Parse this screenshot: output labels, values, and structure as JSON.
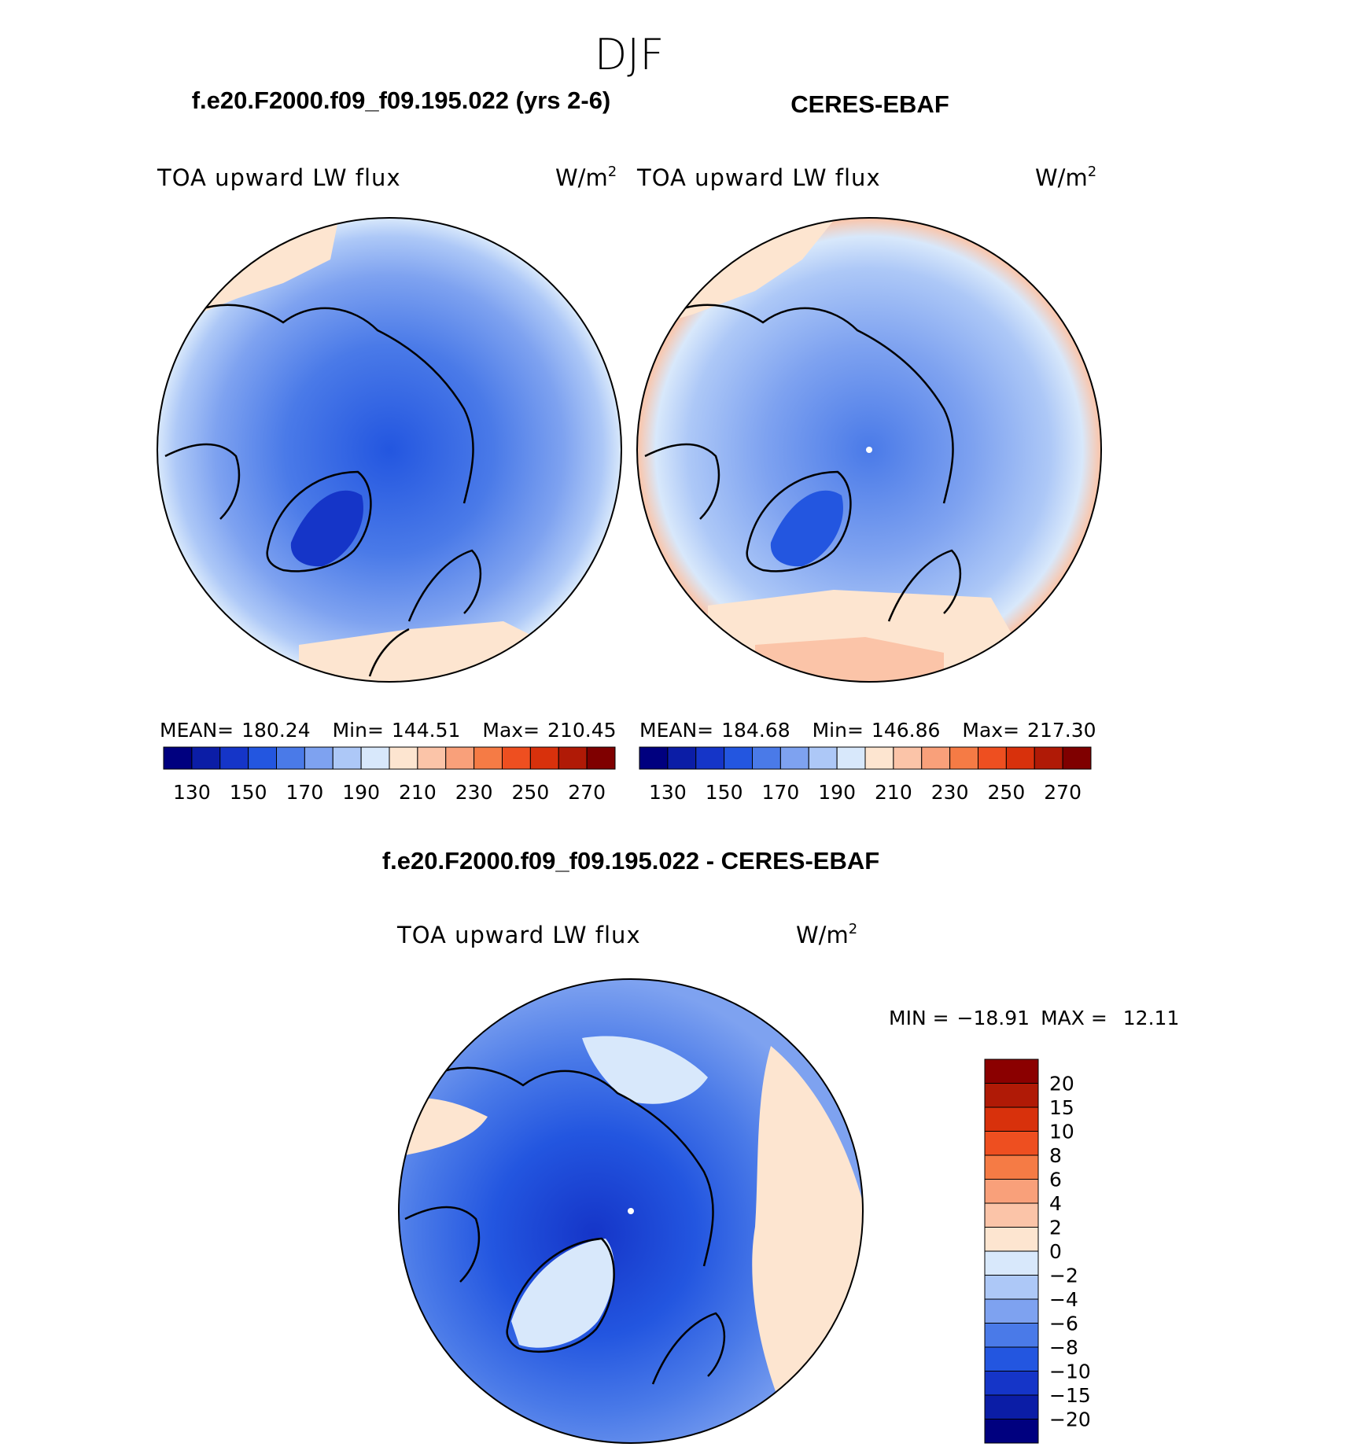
{
  "figure": {
    "season": "DJF",
    "panel_title_model": "f.e20.F2000.f09_f09.195.022 (yrs 2-6)",
    "panel_title_obs": "CERES-EBAF",
    "panel_title_diff": "f.e20.F2000.f09_f09.195.022 - CERES-EBAF",
    "variable": "TOA upward LW flux",
    "units": "W/m",
    "units_exp": "2"
  },
  "chart_data": [
    {
      "type": "heatmap",
      "name": "model",
      "title": "f.e20.F2000.f09_f09.195.022 (yrs 2-6)",
      "variable": "TOA upward LW flux",
      "units": "W/m2",
      "stats": {
        "mean_label": "MEAN=",
        "mean": "180.24",
        "min_label": "Min=",
        "min": "144.51",
        "max_label": "Max=",
        "max": "210.45"
      },
      "levels": [
        "130",
        "150",
        "170",
        "190",
        "210",
        "230",
        "250",
        "270"
      ]
    },
    {
      "type": "heatmap",
      "name": "obs",
      "title": "CERES-EBAF",
      "variable": "TOA upward LW flux",
      "units": "W/m2",
      "stats": {
        "mean_label": "MEAN=",
        "mean": "184.68",
        "min_label": "Min=",
        "min": "146.86",
        "max_label": "Max=",
        "max": "217.30"
      },
      "levels": [
        "130",
        "150",
        "170",
        "190",
        "210",
        "230",
        "250",
        "270"
      ]
    },
    {
      "type": "heatmap",
      "name": "difference",
      "title": "f.e20.F2000.f09_f09.195.022 - CERES-EBAF",
      "variable": "TOA upward LW flux",
      "units": "W/m2",
      "stats": {
        "min_label": "MIN =",
        "min": "−18.91",
        "max_label": "MAX =",
        "max": "12.11"
      },
      "levels": [
        "20",
        "15",
        "10",
        "8",
        "6",
        "4",
        "2",
        "0",
        "−2",
        "−4",
        "−6",
        "−8",
        "−10",
        "−15",
        "−20"
      ]
    }
  ],
  "colors": {
    "abs_scale": [
      "#00007f",
      "#0b1da6",
      "#1535c8",
      "#2356e0",
      "#4a7ae8",
      "#7ea2f0",
      "#adc8f7",
      "#d8e8fb",
      "#fde5d0",
      "#fbc4a8",
      "#f9a07a",
      "#f57b45",
      "#ee4f20",
      "#d8310c",
      "#b01a06",
      "#7f0000"
    ],
    "diff_scale": [
      "#8b0000",
      "#b01a06",
      "#d8310c",
      "#ee4f20",
      "#f57b45",
      "#f9a07a",
      "#fbc4a8",
      "#fde5d0",
      "#d8e8fb",
      "#adc8f7",
      "#7ea2f0",
      "#4a7ae8",
      "#2356e0",
      "#1535c8",
      "#0b1da6",
      "#00007f"
    ],
    "land_line": "#000000",
    "pole_marker": "#ffffff"
  }
}
